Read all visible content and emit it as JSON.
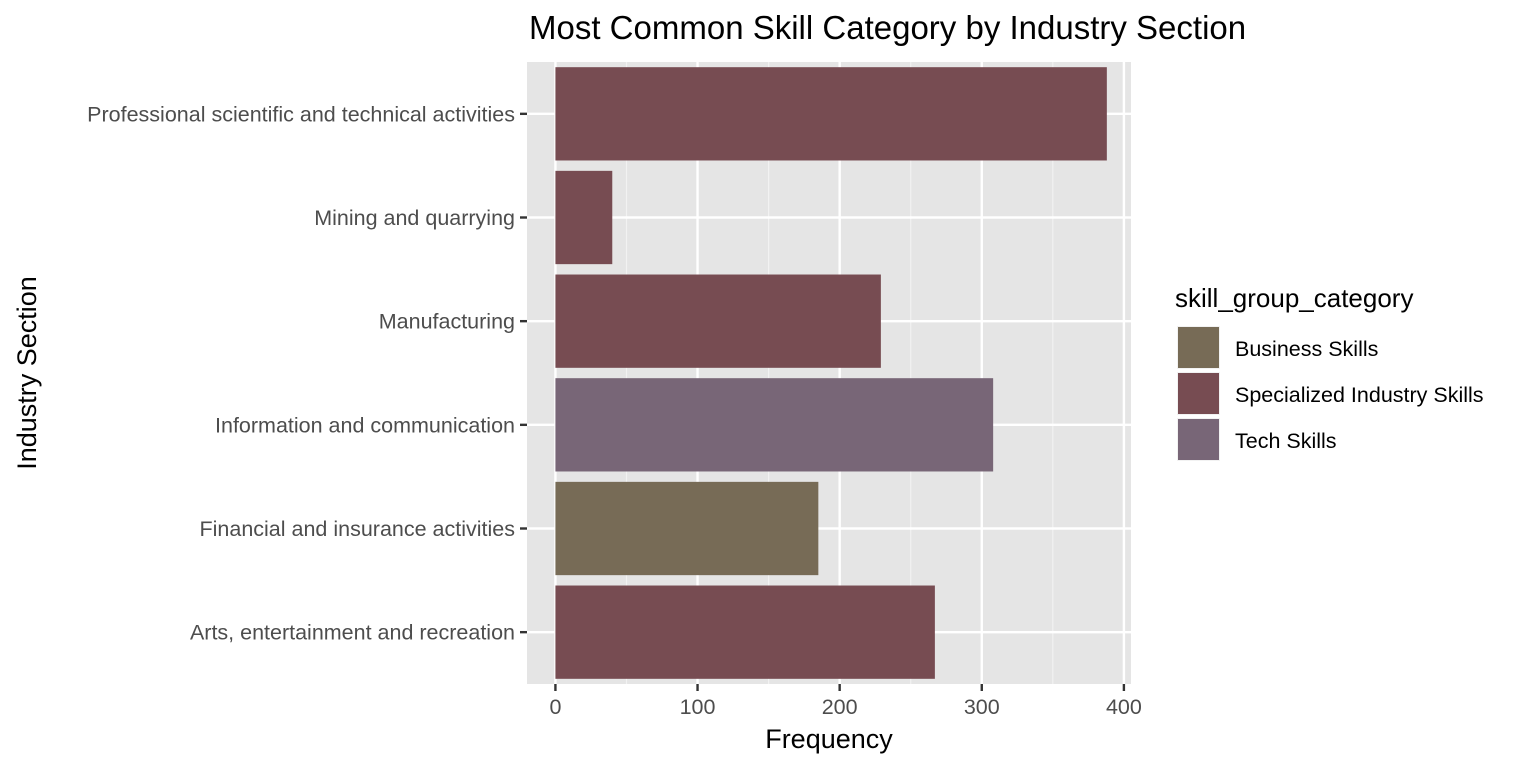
{
  "chart_data": {
    "type": "bar",
    "orientation": "horizontal",
    "title": "Most Common Skill Category by Industry Section",
    "xlabel": "Frequency",
    "ylabel": "Industry Section",
    "xlim": [
      -20,
      405
    ],
    "x_ticks": [
      0,
      100,
      200,
      300,
      400
    ],
    "grid": true,
    "legend_position": "right",
    "legend_title": "skill_group_category",
    "legend": [
      {
        "name": "Business Skills",
        "color": "#776B56"
      },
      {
        "name": "Specialized Industry Skills",
        "color": "#774C52"
      },
      {
        "name": "Tech Skills",
        "color": "#786677"
      }
    ],
    "categories": [
      "Professional scientific and technical activities",
      "Mining and quarrying",
      "Manufacturing",
      "Information and communication",
      "Financial and insurance activities",
      "Arts, entertainment and recreation"
    ],
    "values": [
      388,
      40,
      229,
      308,
      185,
      267
    ],
    "groups": [
      "Specialized Industry Skills",
      "Specialized Industry Skills",
      "Specialized Industry Skills",
      "Tech Skills",
      "Business Skills",
      "Specialized Industry Skills"
    ]
  }
}
